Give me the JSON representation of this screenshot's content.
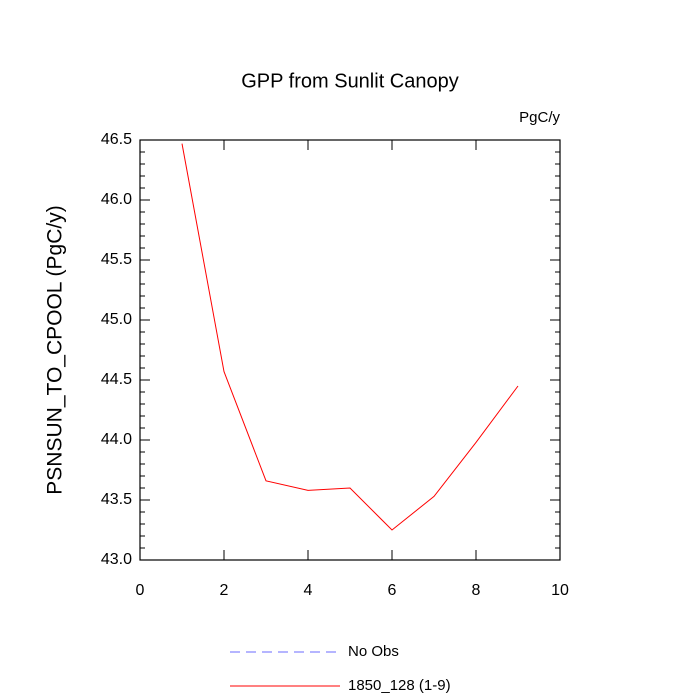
{
  "chart_data": {
    "type": "line",
    "title": "GPP from Sunlit Canopy",
    "units": "PgC/y",
    "y_label": "PSNSUN_TO_CPOOL  (PgC/y)",
    "x": [
      1,
      2,
      3,
      4,
      5,
      6,
      7,
      8,
      9
    ],
    "series": [
      {
        "name": "No Obs",
        "color": "#6b6bff",
        "dashed": true,
        "values": [
          null,
          null,
          null,
          null,
          null,
          null,
          null,
          null,
          null
        ]
      },
      {
        "name": "1850_128 (1-9)",
        "color": "#ff0000",
        "dashed": false,
        "values": [
          46.47,
          44.57,
          43.66,
          43.58,
          43.6,
          43.25,
          43.53,
          43.98,
          44.45
        ]
      }
    ],
    "xlim": [
      0,
      10
    ],
    "xticks": [
      0,
      2,
      4,
      6,
      8,
      10
    ],
    "ylim": [
      43.0,
      46.5
    ],
    "yticks": [
      {
        "value": 43.0,
        "label": "43.0"
      },
      {
        "value": 43.5,
        "label": "43.5"
      },
      {
        "value": 44.0,
        "label": "44.0"
      },
      {
        "value": 44.5,
        "label": "44.5"
      },
      {
        "value": 45.0,
        "label": "45.0"
      },
      {
        "value": 45.5,
        "label": "45.5"
      },
      {
        "value": 46.0,
        "label": "46.0"
      },
      {
        "value": 46.5,
        "label": "46.5"
      }
    ]
  }
}
